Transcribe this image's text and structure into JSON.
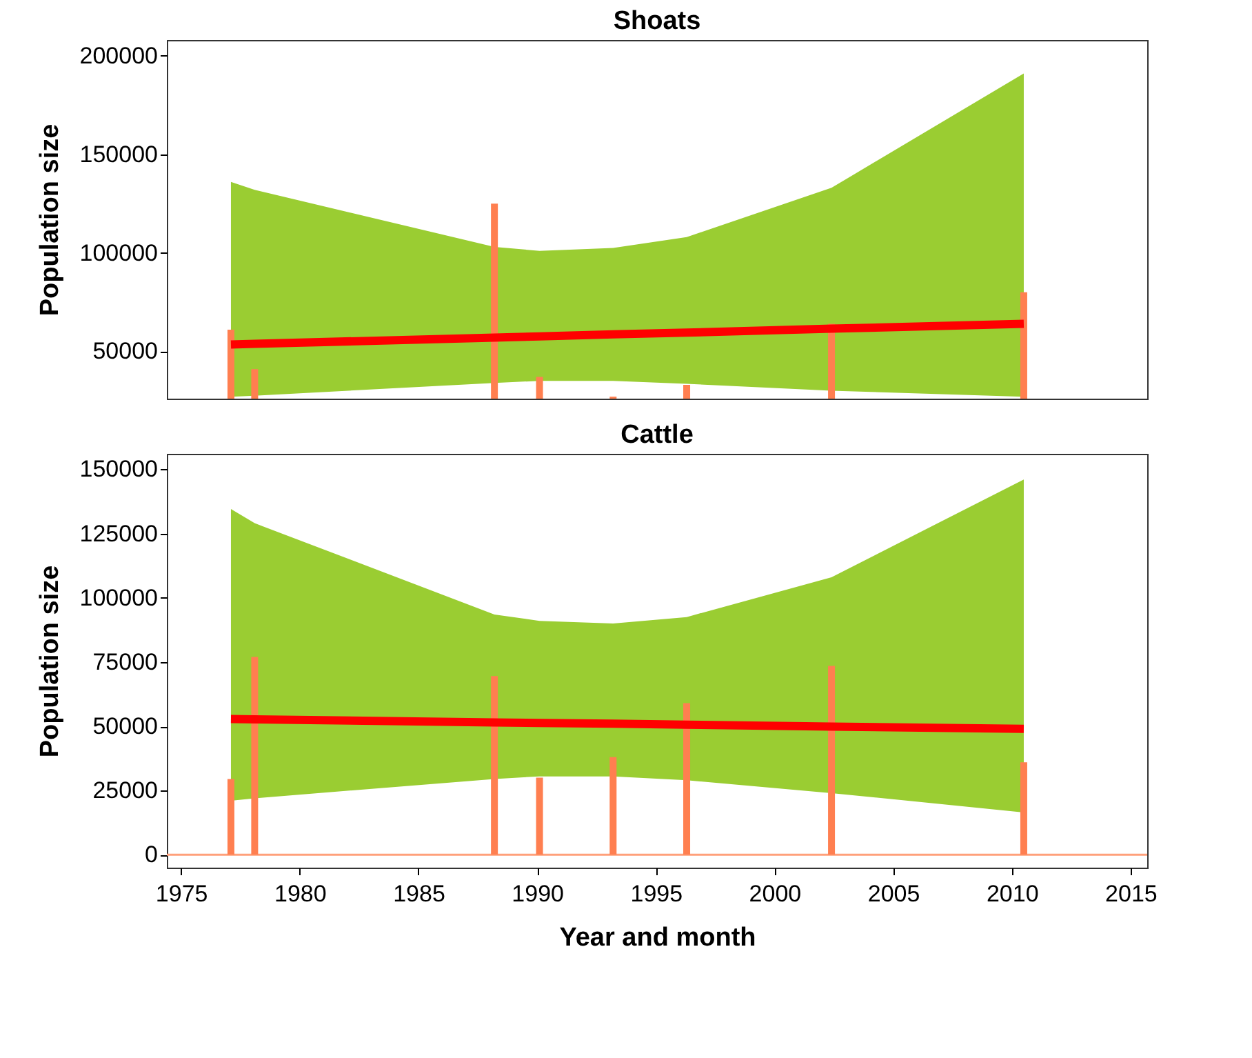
{
  "chart_data": [
    {
      "type": "bar",
      "title": "Shoats",
      "ylabel": "Population size",
      "xlim": [
        1974.4,
        2015.7
      ],
      "xticks": [
        1975,
        1980,
        1985,
        1990,
        1995,
        2000,
        2005,
        2010,
        2015
      ],
      "ylim": [
        26000,
        208000
      ],
      "yticks": [
        50000,
        100000,
        150000,
        200000
      ],
      "tick_labels": "y",
      "grid": false,
      "series": [
        {
          "color": "#ff7f50",
          "x": [
            1977.1,
            1978.1,
            1988.2,
            1990.1,
            1993.2,
            1996.3,
            2002.4,
            2010.5
          ],
          "values": [
            61000,
            41000,
            125000,
            37000,
            27000,
            33000,
            64000,
            80000
          ]
        },
        {
          "type": "line",
          "color": "#ff0000",
          "x": [
            1977.1,
            1978.1,
            1988.2,
            1990.1,
            1993.2,
            1996.3,
            2002.4,
            2010.5
          ],
          "values": [
            53500,
            53800,
            57000,
            57600,
            58600,
            59500,
            61500,
            64000
          ],
          "lower": [
            27000,
            27500,
            34000,
            35000,
            35000,
            33500,
            30000,
            27000
          ],
          "upper": [
            136000,
            132000,
            103000,
            101000,
            102500,
            108000,
            133000,
            191000
          ]
        }
      ]
    },
    {
      "type": "bar",
      "title": "Cattle",
      "xlabel": "Year and month",
      "ylabel": "Population size",
      "xlim": [
        1974.4,
        2015.7
      ],
      "xticks": [
        1975,
        1980,
        1985,
        1990,
        1995,
        2000,
        2005,
        2010,
        2015
      ],
      "ylim": [
        -5000,
        156000
      ],
      "yticks": [
        0,
        25000,
        50000,
        75000,
        100000,
        125000,
        150000
      ],
      "grid": false,
      "ref_lines": [
        {
          "axis": "y",
          "value": 0,
          "color": "#ffa07a"
        }
      ],
      "series": [
        {
          "color": "#ff7f50",
          "x": [
            1977.1,
            1978.1,
            1988.2,
            1990.1,
            1993.2,
            1996.3,
            2002.4,
            2010.5
          ],
          "values": [
            29500,
            77000,
            69500,
            30000,
            38000,
            59000,
            73500,
            36000
          ]
        },
        {
          "type": "line",
          "color": "#ff0000",
          "x": [
            1977.1,
            1978.1,
            1988.2,
            1990.1,
            1993.2,
            1996.3,
            2002.4,
            2010.5
          ],
          "values": [
            52800,
            52700,
            51500,
            51300,
            51000,
            50600,
            49900,
            49000
          ],
          "lower": [
            21000,
            22000,
            29500,
            30500,
            30500,
            29000,
            24000,
            16500
          ],
          "upper": [
            134500,
            129000,
            93500,
            91000,
            90000,
            92500,
            108000,
            146000
          ]
        }
      ]
    }
  ]
}
